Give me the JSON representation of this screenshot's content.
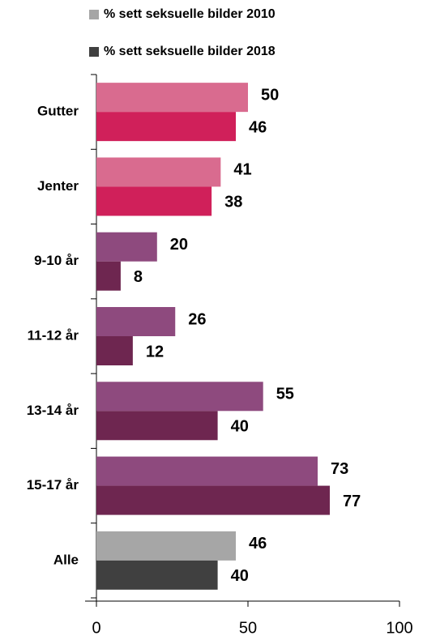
{
  "chart_data": {
    "type": "bar",
    "orientation": "horizontal",
    "categories": [
      "Gutter",
      "Jenter",
      "9-10 år",
      "11-12 år",
      "13-14 år",
      "15-17 år",
      "Alle"
    ],
    "series": [
      {
        "name": "% sett seksuelle bilder 2010",
        "color": "#a6a6a6",
        "colors": [
          "#d96b8f",
          "#d96b8f",
          "#8e4a7e",
          "#8e4a7e",
          "#8e4a7e",
          "#8e4a7e",
          "#a6a6a6"
        ],
        "values": [
          50,
          41,
          20,
          26,
          55,
          73,
          46
        ]
      },
      {
        "name": "% sett seksuelle bilder 2018",
        "color": "#404040",
        "colors": [
          "#d0205a",
          "#d0205a",
          "#6e2650",
          "#6e2650",
          "#6e2650",
          "#6e2650",
          "#404040"
        ],
        "values": [
          46,
          38,
          8,
          12,
          40,
          77,
          40
        ]
      }
    ],
    "xlim": [
      0,
      100
    ],
    "xticks": [
      0,
      50,
      100
    ],
    "legend": "top"
  }
}
